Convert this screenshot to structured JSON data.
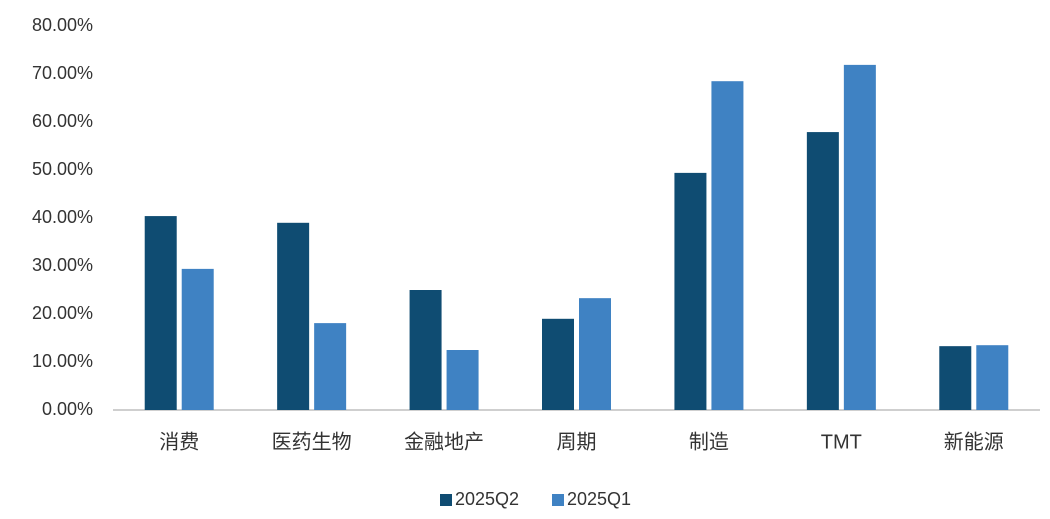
{
  "chart_data": {
    "type": "bar",
    "categories": [
      "消费",
      "医药生物",
      "金融地产",
      "周期",
      "制造",
      "TMT",
      "新能源"
    ],
    "series": [
      {
        "name": "2025Q2",
        "color": "#0f4c72",
        "values": [
          40.4,
          39.0,
          25.0,
          19.0,
          49.4,
          57.9,
          13.3
        ]
      },
      {
        "name": "2025Q1",
        "color": "#3f82c3",
        "values": [
          29.4,
          18.1,
          12.5,
          23.3,
          68.5,
          71.9,
          13.5
        ]
      }
    ],
    "ylim": [
      0,
      80
    ],
    "yticks": [
      {
        "value": 0,
        "label": "0.00%"
      },
      {
        "value": 10,
        "label": "10.00%"
      },
      {
        "value": 20,
        "label": "20.00%"
      },
      {
        "value": 30,
        "label": "30.00%"
      },
      {
        "value": 40,
        "label": "40.00%"
      },
      {
        "value": 50,
        "label": "50.00%"
      },
      {
        "value": 60,
        "label": "60.00%"
      },
      {
        "value": 70,
        "label": "70.00%"
      },
      {
        "value": 80,
        "label": "80.00%"
      }
    ],
    "grid": false,
    "legend": "bottom"
  }
}
